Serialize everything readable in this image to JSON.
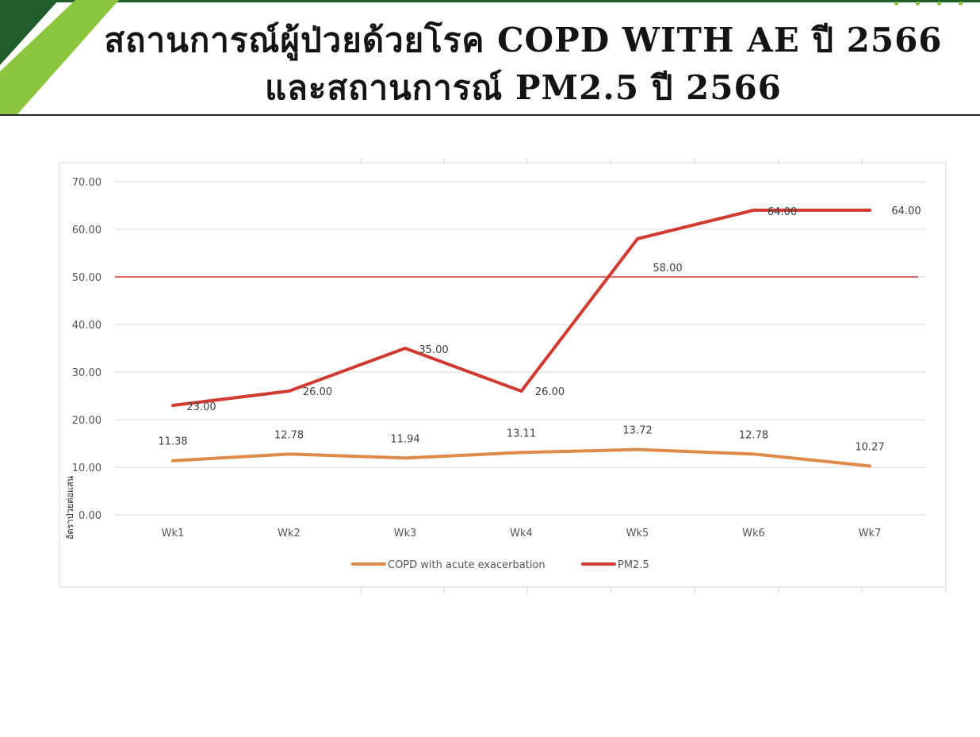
{
  "header": {
    "title_line1": "สถานการณ์ผู้ป่วยด้วยโรค COPD WITH AE ปี 2566",
    "title_line2": "และสถานการณ์ PM2.5 ปี 2566"
  },
  "colors": {
    "stripe_dark": "#1f5e2a",
    "stripe_light": "#8cc63f",
    "copd": "#e08a4a",
    "pm25": "#d13a30",
    "threshold": "#d9676a"
  },
  "chart_data": {
    "type": "line",
    "categories": [
      "Wk1",
      "Wk2",
      "Wk3",
      "Wk4",
      "Wk5",
      "Wk6",
      "Wk7"
    ],
    "series": [
      {
        "name": "COPD with acute exacerbation",
        "values": [
          11.38,
          12.78,
          11.94,
          13.11,
          13.72,
          12.78,
          10.27
        ],
        "labels": [
          "11.38",
          "12.78",
          "11.94",
          "13.11",
          "13.72",
          "12.78",
          "10.27"
        ]
      },
      {
        "name": "PM2.5",
        "values": [
          23,
          26,
          35,
          26,
          58,
          64,
          64
        ],
        "labels": [
          "23.00",
          "26.00",
          "35.00",
          "26.00",
          "58.00",
          "64.00",
          "64.00"
        ]
      }
    ],
    "reference_line": 50,
    "ylim": [
      0,
      70
    ],
    "yticks": [
      "0.00",
      "10.00",
      "20.00",
      "30.00",
      "40.00",
      "50.00",
      "60.00",
      "70.00"
    ],
    "ylabel": "อัตราป่วยต่อแสน",
    "xlabel": "",
    "grid": true,
    "legend_position": "bottom"
  }
}
